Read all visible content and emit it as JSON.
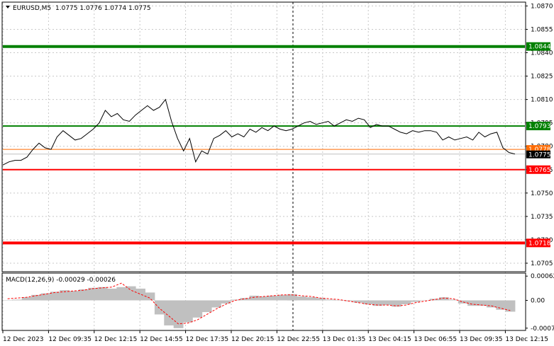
{
  "header": {
    "symbol": "EURUSD,M5",
    "ohlc": "1.0775 1.0776 1.0774 1.0775"
  },
  "macd": {
    "label": "MACD(12,26,9) -0.00029 -0.00026",
    "scale_labels": [
      "0.00062",
      "0.00",
      "-0.00071"
    ]
  },
  "colors": {
    "resistance_line": "#008000",
    "support_line": "#ff0000",
    "current_price_tag": "#000000",
    "ask_tag": "#ff6a00",
    "price_line": "#000000",
    "histogram": "#c0c0c0",
    "signal_line": "#ff0000"
  },
  "chart_data": {
    "type": "line",
    "symbol": "EURUSD",
    "timeframe": "M5",
    "ylim": [
      1.07,
      1.0872
    ],
    "y_ticks": [
      "1.0870",
      "1.0855",
      "1.0840",
      "1.0825",
      "1.0810",
      "1.0795",
      "1.0780",
      "1.0765",
      "1.0750",
      "1.0735",
      "1.0720",
      "1.0705"
    ],
    "x_ticks": [
      "12 Dec 2023",
      "12 Dec 09:35",
      "12 Dec 12:15",
      "12 Dec 14:55",
      "12 Dec 17:35",
      "12 Dec 20:15",
      "12 Dec 22:55",
      "13 Dec 01:35",
      "13 Dec 04:15",
      "13 Dec 06:55",
      "13 Dec 09:35",
      "13 Dec 12:15"
    ],
    "levels": [
      {
        "label": "1.0844",
        "value": 1.0844,
        "kind": "resistance"
      },
      {
        "label": "1.0793",
        "value": 1.0793,
        "kind": "resistance"
      },
      {
        "label": "1.0765",
        "value": 1.0765,
        "kind": "support"
      },
      {
        "label": "1.0718",
        "value": 1.0718,
        "kind": "support"
      }
    ],
    "current_price": "1.0775",
    "ask_price": "1.0778",
    "price_series": [
      1.0768,
      1.077,
      1.0771,
      1.0771,
      1.0773,
      1.0778,
      1.0782,
      1.0779,
      1.0778,
      1.0786,
      1.079,
      1.0787,
      1.0784,
      1.0785,
      1.0788,
      1.0791,
      1.0795,
      1.0803,
      1.0799,
      1.0801,
      1.0797,
      1.0796,
      1.08,
      1.0803,
      1.0806,
      1.0803,
      1.0805,
      1.081,
      1.0796,
      1.0785,
      1.0777,
      1.0785,
      1.077,
      1.0777,
      1.0775,
      1.0785,
      1.0787,
      1.079,
      1.0786,
      1.0788,
      1.0786,
      1.0791,
      1.0789,
      1.0792,
      1.079,
      1.0793,
      1.0791,
      1.079,
      1.0791,
      1.0793,
      1.0795,
      1.0796,
      1.0794,
      1.0795,
      1.0796,
      1.0793,
      1.0795,
      1.0797,
      1.0796,
      1.0798,
      1.0797,
      1.0792,
      1.0794,
      1.0793,
      1.0793,
      1.0791,
      1.0789,
      1.0788,
      1.079,
      1.0789,
      1.079,
      1.079,
      1.0789,
      1.0784,
      1.0786,
      1.0784,
      1.0785,
      1.0786,
      1.0784,
      1.0789,
      1.0786,
      1.0788,
      1.0789,
      1.0779,
      1.0776,
      1.0775
    ],
    "macd_histogram": [
      0.0,
      2e-05,
      8e-05,
      0.00014,
      0.00018,
      0.00022,
      0.00026,
      0.00024,
      0.00028,
      0.00032,
      0.00034,
      0.0003,
      0.00034,
      0.00036,
      0.0003,
      0.0002,
      -0.00036,
      -0.00064,
      -0.00071,
      -0.00056,
      -0.00044,
      -0.0003,
      -0.00018,
      -8e-05,
      2e-05,
      6e-05,
      0.00012,
      0.0001,
      0.00012,
      0.00014,
      0.00016,
      0.0001,
      8e-05,
      6e-05,
      2e-05,
      0.0,
      -2e-05,
      -6e-05,
      -0.0001,
      -0.00014,
      -0.00012,
      -0.00016,
      -0.0001,
      -4e-05,
      0.0,
      4e-05,
      8e-05,
      2e-05,
      -8e-05,
      -0.00014,
      -0.00014,
      -0.00018,
      -0.00024,
      -0.00029
    ],
    "macd_signal": [
      4e-05,
      6e-05,
      8e-05,
      0.00012,
      0.00016,
      0.0002,
      0.00022,
      0.00024,
      0.00026,
      0.0003,
      0.00032,
      0.00034,
      0.00044,
      0.00026,
      0.00016,
      6e-05,
      -0.0002,
      -0.0004,
      -0.0006,
      -0.00058,
      -0.0005,
      -0.00036,
      -0.00022,
      -0.0001,
      0.0,
      4e-05,
      8e-05,
      0.0001,
      0.00012,
      0.00014,
      0.00014,
      0.00012,
      0.0001,
      6e-05,
      4e-05,
      2e-05,
      -2e-05,
      -6e-05,
      -0.0001,
      -0.00012,
      -0.00012,
      -0.00014,
      -0.00012,
      -6e-05,
      -2e-05,
      2e-05,
      6e-05,
      4e-05,
      -4e-05,
      -0.0001,
      -0.00012,
      -0.00014,
      -0.0002,
      -0.00026
    ],
    "macd_ylim": [
      -0.00075,
      0.00066
    ]
  }
}
